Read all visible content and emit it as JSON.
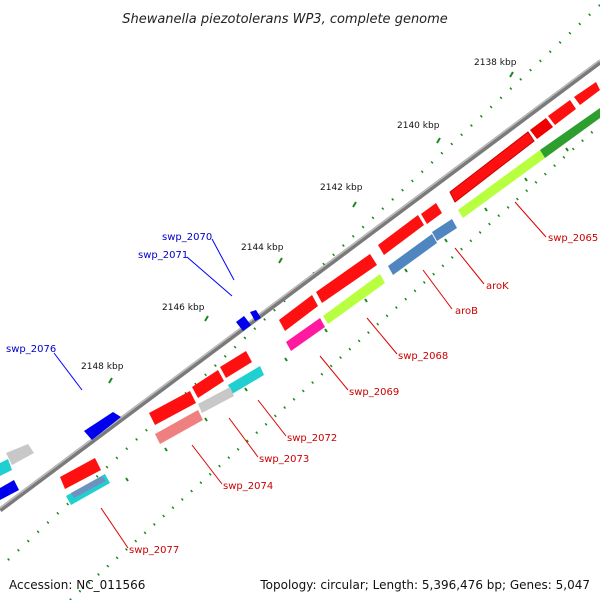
{
  "title": "Shewanella piezotolerans WP3, complete genome",
  "footer": {
    "accession": "Accession: NC_011566",
    "summary": "Topology: circular; Length: 5,396,476 bp; Genes: 5,047"
  },
  "kbp_labels": [
    "2138 kbp",
    "2140 kbp",
    "2142 kbp",
    "2144 kbp",
    "2146 kbp",
    "2148 kbp"
  ],
  "gene_labels": [
    {
      "name": "swp_2065",
      "color": "#cc0000"
    },
    {
      "name": "aroK",
      "color": "#cc0000"
    },
    {
      "name": "aroB",
      "color": "#cc0000"
    },
    {
      "name": "swp_2068",
      "color": "#cc0000"
    },
    {
      "name": "swp_2069",
      "color": "#cc0000"
    },
    {
      "name": "swp_2072",
      "color": "#cc0000"
    },
    {
      "name": "swp_2073",
      "color": "#cc0000"
    },
    {
      "name": "swp_2074",
      "color": "#cc0000"
    },
    {
      "name": "swp_2077",
      "color": "#cc0000"
    },
    {
      "name": "swp_2070",
      "color": "#0000cc"
    },
    {
      "name": "swp_2071",
      "color": "#0000cc"
    },
    {
      "name": "swp_2076",
      "color": "#0000cc"
    }
  ],
  "colors": {
    "cds_forward": "#ff0000",
    "cds_reverse": "#0000ff",
    "rna": "#00cccc",
    "backbone": "#888888",
    "tick": "#1a8a1a"
  }
}
